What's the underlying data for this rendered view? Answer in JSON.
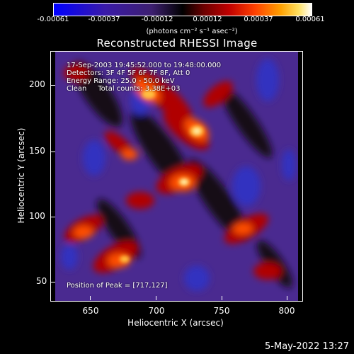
{
  "colorbar": {
    "ticks": [
      "-0.00061",
      "-0.00037",
      "-0.00012",
      "0.00012",
      "0.00037",
      "0.00061"
    ],
    "unit": "(photons cm⁻² s⁻¹ asec⁻²)"
  },
  "title": "Reconstructed RHESSI Image",
  "annotations": {
    "time": "17-Sep-2003 19:45:52.000 to 19:48:00.000",
    "detectors": "Detectors: 3F 4F 5F 6F 7F 8F, Att 0",
    "energy": "Energy Range: 25.0 - 50.0 keV",
    "clean": "Clean     Total counts: 3.38E+03",
    "peak": "Position of Peak = [717,127]"
  },
  "axes": {
    "xlabel": "Heliocentric X (arcsec)",
    "ylabel": "Heliocentric Y (arcsec)",
    "xticks": [
      "650",
      "700",
      "750",
      "800"
    ],
    "yticks": [
      "200",
      "150",
      "100",
      "50"
    ]
  },
  "datestamp": "5-May-2022 13:27",
  "colors": {
    "negative": "#0000ff",
    "zero": "#000000",
    "positive": "#ffffff",
    "mid_hot": "#ff4000"
  }
}
